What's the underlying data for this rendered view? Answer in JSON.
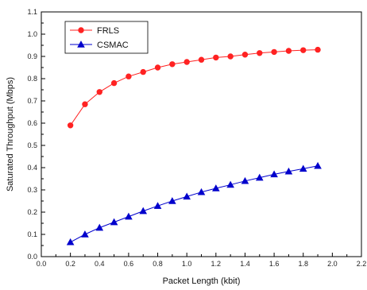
{
  "chart_data": {
    "type": "line",
    "xlabel": "Packet Length (kbit)",
    "ylabel": "Saturated Throughput (Mbps)",
    "xlim": [
      0.0,
      2.2
    ],
    "ylim": [
      0.0,
      1.1
    ],
    "x_ticks": [
      "0.0",
      "0.2",
      "0.4",
      "0.6",
      "0.8",
      "1.0",
      "1.2",
      "1.4",
      "1.6",
      "1.8",
      "2.0",
      "2.2"
    ],
    "y_ticks": [
      "0.0",
      "0.1",
      "0.2",
      "0.3",
      "0.4",
      "0.5",
      "0.6",
      "0.7",
      "0.8",
      "0.9",
      "1.0",
      "1.1"
    ],
    "legend_position": "top-left",
    "x": [
      0.2,
      0.3,
      0.4,
      0.5,
      0.6,
      0.7,
      0.8,
      0.9,
      1.0,
      1.1,
      1.2,
      1.3,
      1.4,
      1.5,
      1.6,
      1.7,
      1.8,
      1.9
    ],
    "series": [
      {
        "name": "FRLS",
        "color": "#ff2222",
        "marker": "circle",
        "values": [
          0.59,
          0.685,
          0.74,
          0.78,
          0.81,
          0.83,
          0.85,
          0.865,
          0.875,
          0.885,
          0.895,
          0.9,
          0.908,
          0.915,
          0.92,
          0.925,
          0.928,
          0.93
        ]
      },
      {
        "name": "CSMAC",
        "color": "#0000cc",
        "marker": "triangle",
        "values": [
          0.065,
          0.1,
          0.13,
          0.155,
          0.18,
          0.205,
          0.228,
          0.25,
          0.27,
          0.29,
          0.307,
          0.323,
          0.34,
          0.355,
          0.37,
          0.383,
          0.395,
          0.408
        ]
      }
    ]
  }
}
